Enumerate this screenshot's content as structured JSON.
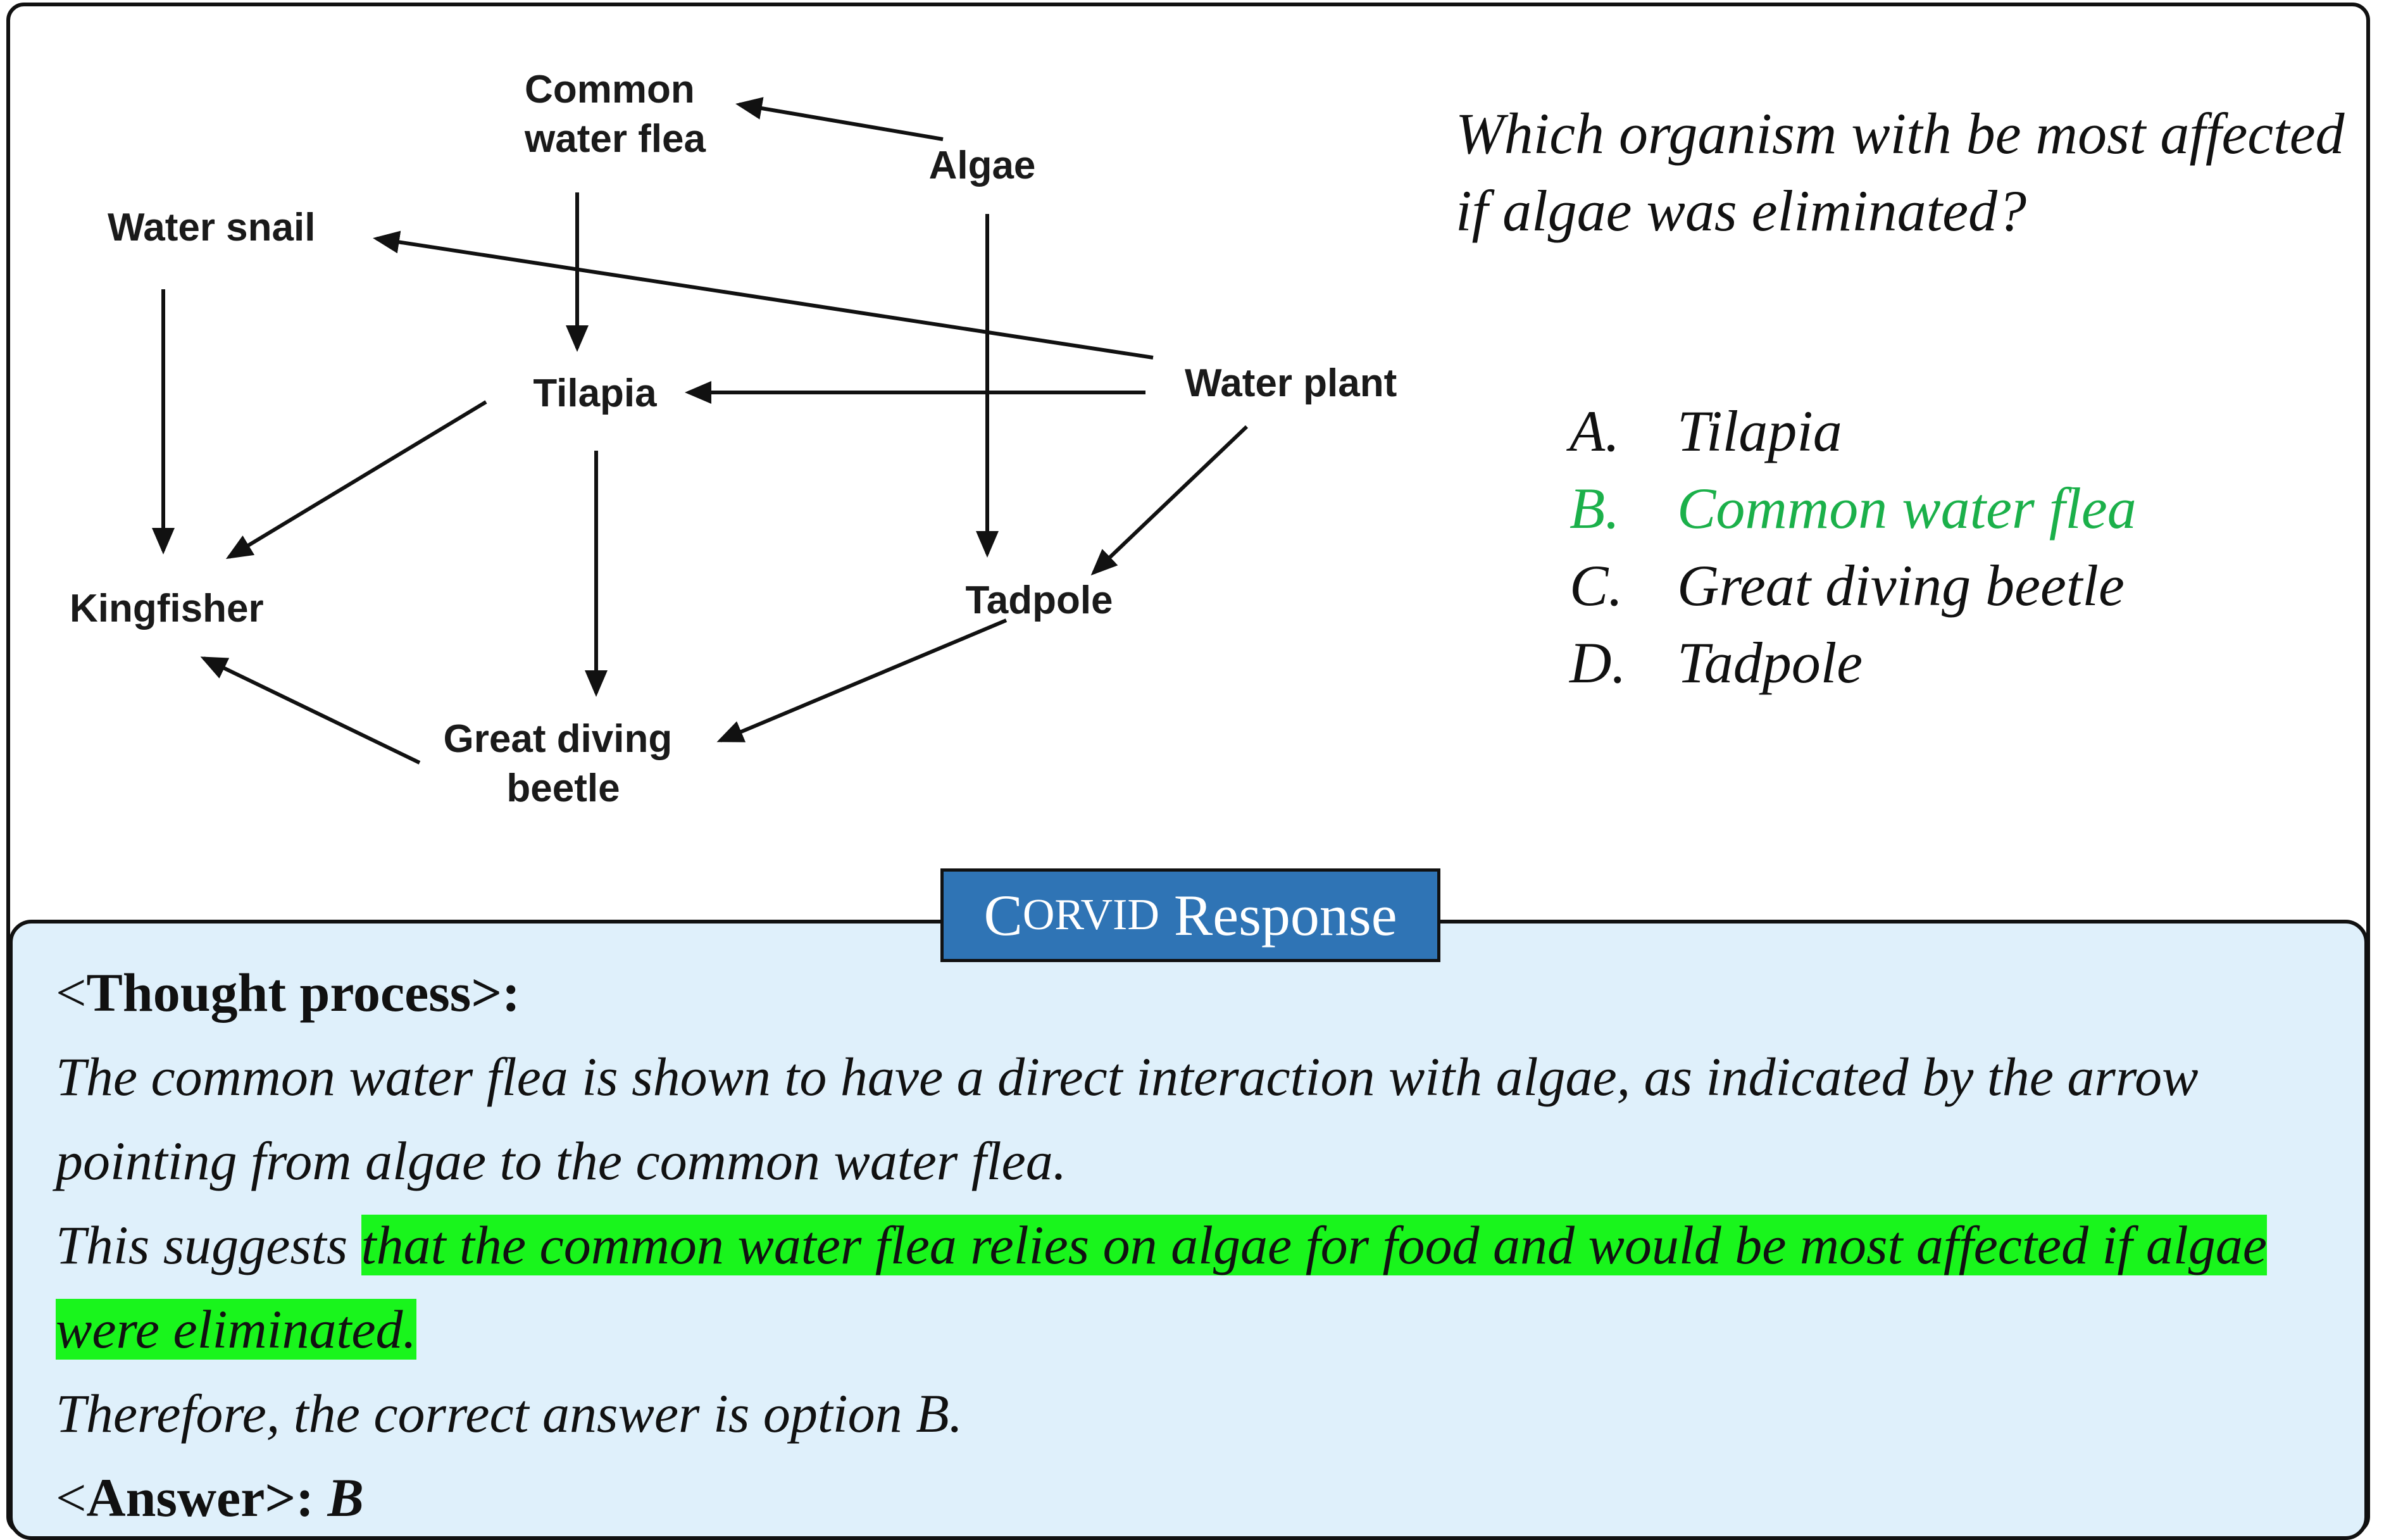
{
  "diagram": {
    "nodes": {
      "common_water_flea": [
        "Common",
        "water flea"
      ],
      "algae": "Algae",
      "water_snail": "Water snail",
      "tilapia": "Tilapia",
      "water_plant": "Water plant",
      "kingfisher": "Kingfisher",
      "tadpole": "Tadpole",
      "great_diving_beetle": [
        "Great diving",
        "beetle"
      ]
    },
    "edges": [
      {
        "from": "algae",
        "to": "common_water_flea"
      },
      {
        "from": "algae",
        "to": "tadpole"
      },
      {
        "from": "common_water_flea",
        "to": "tilapia"
      },
      {
        "from": "water_plant",
        "to": "water_snail"
      },
      {
        "from": "water_plant",
        "to": "tilapia"
      },
      {
        "from": "water_plant",
        "to": "tadpole"
      },
      {
        "from": "water_snail",
        "to": "kingfisher"
      },
      {
        "from": "tilapia",
        "to": "kingfisher"
      },
      {
        "from": "tilapia",
        "to": "great_diving_beetle"
      },
      {
        "from": "tadpole",
        "to": "great_diving_beetle"
      },
      {
        "from": "great_diving_beetle",
        "to": "kingfisher"
      }
    ]
  },
  "question": {
    "line1": "Which organism with be most affected",
    "line2": "if algae was eliminated?"
  },
  "options": [
    {
      "letter": "A.",
      "text": "Tilapia",
      "correct": false
    },
    {
      "letter": "B.",
      "text": "Common water flea",
      "correct": true
    },
    {
      "letter": "C.",
      "text": "Great diving beetle",
      "correct": false
    },
    {
      "letter": "D.",
      "text": "Tadpole",
      "correct": false
    }
  ],
  "response": {
    "title_smallcaps_initial": "C",
    "title_smallcaps_rest": "ORVID",
    "title_rest": " Response",
    "thought_open": "<",
    "thought_label": "Thought process",
    "thought_close": ">:",
    "para1": "The common water flea is shown to have a direct interaction with algae, as indicated by the arrow pointing from algae to the common water flea.",
    "para2_prefix": "This suggests ",
    "para2_highlight": "that the common water flea relies on algae for food and would be most affected if algae were eliminated.",
    "para3": "Therefore, the correct answer is option B.",
    "answer_open": "<",
    "answer_label": "Answer",
    "answer_close": ">:",
    "answer_value": "B"
  },
  "colors": {
    "correct_option": "#1bb04a",
    "highlight": "#19f51c",
    "response_bg": "#dff0fb",
    "title_bg": "#2f74b5"
  }
}
